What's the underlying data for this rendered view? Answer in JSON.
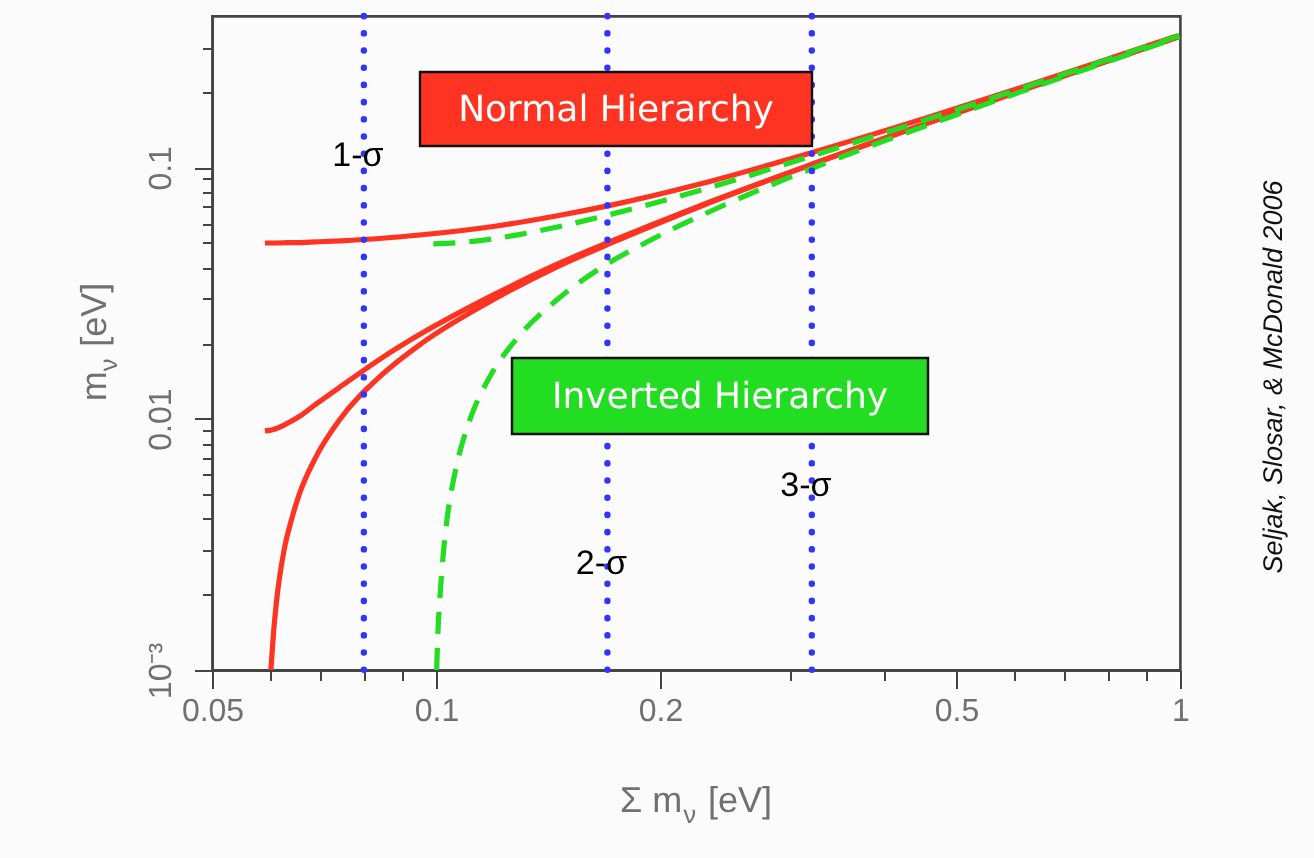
{
  "chart_data": {
    "type": "line",
    "xlabel": "Σ m$_{ν}$ [eV]",
    "ylabel": "m$_{ν}$ [eV]",
    "log": "xy",
    "xlim": [
      0.05,
      1
    ],
    "ylim": [
      0.001,
      0.4
    ],
    "xticks": [
      0.05,
      {
        "value": 0.06,
        "label": null
      },
      {
        "value": 0.07,
        "label": null
      },
      {
        "value": 0.08,
        "label": null
      },
      {
        "value": 0.09,
        "label": null
      },
      0.1,
      0.2,
      {
        "value": 0.3,
        "label": null
      },
      {
        "value": 0.4,
        "label": null
      },
      0.5,
      {
        "value": 0.6,
        "label": null
      },
      {
        "value": 0.7,
        "label": null
      },
      {
        "value": 0.8,
        "label": null
      },
      {
        "value": 0.9,
        "label": null
      },
      1
    ],
    "yticks": [
      {
        "value": 0.001,
        "label": "10⁻³"
      },
      {
        "value": 0.002,
        "label": null
      },
      {
        "value": 0.003,
        "label": null
      },
      {
        "value": 0.004,
        "label": null
      },
      {
        "value": 0.005,
        "label": null
      },
      {
        "value": 0.006,
        "label": null
      },
      {
        "value": 0.007,
        "label": null
      },
      {
        "value": 0.008,
        "label": null
      },
      {
        "value": 0.009,
        "label": null
      },
      0.01,
      {
        "value": 0.02,
        "label": null
      },
      {
        "value": 0.03,
        "label": null
      },
      {
        "value": 0.04,
        "label": null
      },
      {
        "value": 0.05,
        "label": null
      },
      {
        "value": 0.06,
        "label": null
      },
      {
        "value": 0.07,
        "label": null
      },
      {
        "value": 0.08,
        "label": null
      },
      {
        "value": 0.09,
        "label": null
      },
      0.1,
      {
        "value": 0.2,
        "label": null
      },
      {
        "value": 0.3,
        "label": null
      }
    ],
    "series": [
      {
        "name": "Normal Hierarchy",
        "color": "#ff3322",
        "x": [
          0.0589,
          0.06,
          0.0606,
          0.0612,
          0.0625,
          0.064,
          0.0655,
          0.0689,
          0.0744,
          0.0847,
          0.0958,
          0.12,
          0.145,
          0.172,
          0.227,
          0.312,
          0.458,
          0.606,
          0.755,
          0.994
        ],
        "values": [
          0.05,
          0.05,
          0.05,
          0.05,
          0.0501,
          0.0502,
          0.0502,
          0.0505,
          0.051,
          0.0522,
          0.0539,
          0.0583,
          0.064,
          0.0707,
          0.086,
          0.112,
          0.158,
          0.206,
          0.255,
          0.334
        ]
      },
      {
        "color": "#ff3322",
        "x": [
          0.0589,
          0.06,
          0.0606,
          0.0612,
          0.0625,
          0.064,
          0.0655,
          0.0689,
          0.0744,
          0.0847,
          0.0958,
          0.12,
          0.145,
          0.172,
          0.227,
          0.312,
          0.458,
          0.606,
          0.755,
          0.994
        ],
        "values": [
          0.00894,
          0.009,
          0.00907,
          0.00917,
          0.00943,
          0.0098,
          0.0102,
          0.0114,
          0.0134,
          0.0175,
          0.0219,
          0.0313,
          0.041,
          0.0508,
          0.0706,
          0.1,
          0.15,
          0.2,
          0.25,
          0.33
        ]
      },
      {
        "color": "#ff3322",
        "x": [
          0.06,
          0.0606,
          0.0612,
          0.0625,
          0.064,
          0.0655,
          0.0689,
          0.0744,
          0.0847,
          0.0958,
          0.12,
          0.145,
          0.172,
          0.227,
          0.312,
          0.458,
          0.606,
          0.755,
          0.994
        ],
        "values": [
          0.001,
          0.0015,
          0.002,
          0.003,
          0.004,
          0.005,
          0.007,
          0.01,
          0.015,
          0.02,
          0.03,
          0.04,
          0.05,
          0.07,
          0.1,
          0.15,
          0.2,
          0.25,
          0.33
        ]
      },
      {
        "name": "Inverted Hierarchy",
        "color": "#22dd22",
        "line_style": "dashed",
        "x": [
          0.0992,
          0.1047,
          0.1112,
          0.1186,
          0.127,
          0.146,
          0.167,
          0.191,
          0.242,
          0.323,
          0.466,
          0.612,
          0.76,
          0.998
        ],
        "values": [
          0.0496,
          0.0499,
          0.0506,
          0.0518,
          0.0535,
          0.058,
          0.0637,
          0.0704,
          0.0858,
          0.112,
          0.158,
          0.206,
          0.255,
          0.334
        ]
      },
      {
        "color": "#22dd22",
        "line_style": "dashed",
        "x": [
          0.1002,
          0.1007,
          0.1013,
          0.1024,
          0.1035,
          0.1047,
          0.1072,
          0.1112,
          0.1186,
          0.127,
          0.146,
          0.167,
          0.191,
          0.242,
          0.323,
          0.466,
          0.612,
          0.76,
          0.998
        ],
        "values": [
          0.001,
          0.0015,
          0.002,
          0.003,
          0.004,
          0.005,
          0.007,
          0.01,
          0.015,
          0.02,
          0.03,
          0.04,
          0.05,
          0.07,
          0.1,
          0.15,
          0.2,
          0.25,
          0.33
        ]
      }
    ],
    "ref_lines": [
      {
        "axis": "x",
        "value": 0.08,
        "label": "1-σ",
        "color": "#3333ff",
        "line_style": "dotted"
      },
      {
        "axis": "x",
        "value": 0.17,
        "label": "2-σ",
        "color": "#3333ff",
        "line_style": "dotted"
      },
      {
        "axis": "x",
        "value": 0.32,
        "label": "3-σ",
        "color": "#3333ff",
        "line_style": "dotted"
      }
    ],
    "annotations": [
      "Seljak, Slosar, & McDonald 2006"
    ]
  }
}
